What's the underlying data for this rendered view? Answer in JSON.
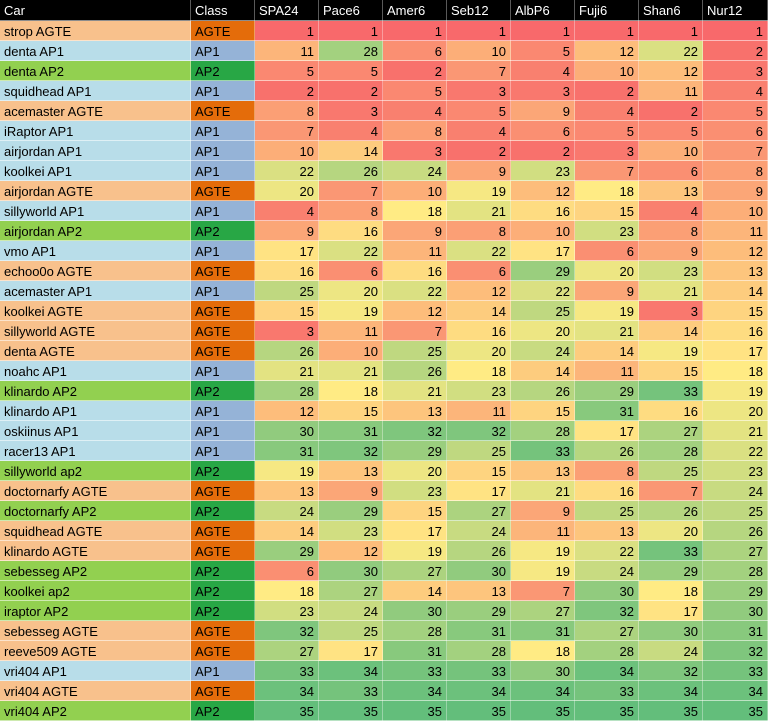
{
  "columns": [
    "Car",
    "Class",
    "SPA24",
    "Pace6",
    "Amer6",
    "Seb12",
    "AlbP6",
    "Fuji6",
    "Shan6",
    "Nur12"
  ],
  "class_colors": {
    "AGTE": {
      "car_bg": "#f8c18c",
      "class_bg": "#e46c0a"
    },
    "AP1": {
      "car_bg": "#b8dde9",
      "class_bg": "#95b3d7"
    },
    "AP2": {
      "car_bg": "#92d050",
      "class_bg": "#28a745"
    }
  },
  "scale": {
    "min": 1,
    "max": 35,
    "low_color": "#f8696b",
    "mid_color": "#ffeb84",
    "high_color": "#63be7b"
  },
  "rows": [
    {
      "car": "strop AGTE",
      "class": "AGTE",
      "values": [
        1,
        1,
        1,
        1,
        1,
        1,
        1,
        1
      ]
    },
    {
      "car": "denta AP1",
      "class": "AP1",
      "values": [
        11,
        28,
        6,
        10,
        5,
        12,
        22,
        2
      ]
    },
    {
      "car": "denta AP2",
      "class": "AP2",
      "values": [
        5,
        5,
        2,
        7,
        4,
        10,
        12,
        3
      ]
    },
    {
      "car": "squidhead AP1",
      "class": "AP1",
      "values": [
        2,
        2,
        5,
        3,
        3,
        2,
        11,
        4
      ]
    },
    {
      "car": "acemaster AGTE",
      "class": "AGTE",
      "values": [
        8,
        3,
        4,
        5,
        9,
        4,
        2,
        5
      ]
    },
    {
      "car": "iRaptor AP1",
      "class": "AP1",
      "values": [
        7,
        4,
        8,
        4,
        6,
        5,
        5,
        6
      ]
    },
    {
      "car": "airjordan AP1",
      "class": "AP1",
      "values": [
        10,
        14,
        3,
        2,
        2,
        3,
        10,
        7
      ]
    },
    {
      "car": "koolkei AP1",
      "class": "AP1",
      "values": [
        22,
        26,
        24,
        9,
        23,
        7,
        6,
        8
      ]
    },
    {
      "car": "airjordan AGTE",
      "class": "AGTE",
      "values": [
        20,
        7,
        10,
        19,
        12,
        18,
        13,
        9
      ]
    },
    {
      "car": "sillyworld AP1",
      "class": "AP1",
      "values": [
        4,
        8,
        18,
        21,
        16,
        15,
        4,
        10
      ]
    },
    {
      "car": "airjordan AP2",
      "class": "AP2",
      "values": [
        9,
        16,
        9,
        8,
        10,
        23,
        8,
        11
      ]
    },
    {
      "car": "vmo AP1",
      "class": "AP1",
      "values": [
        17,
        22,
        11,
        22,
        17,
        6,
        9,
        12
      ]
    },
    {
      "car": "echoo0o AGTE",
      "class": "AGTE",
      "values": [
        16,
        6,
        16,
        6,
        29,
        20,
        23,
        13
      ]
    },
    {
      "car": "acemaster AP1",
      "class": "AP1",
      "values": [
        25,
        20,
        22,
        12,
        22,
        9,
        21,
        14
      ]
    },
    {
      "car": "koolkei AGTE",
      "class": "AGTE",
      "values": [
        15,
        19,
        12,
        14,
        25,
        19,
        3,
        15
      ]
    },
    {
      "car": "sillyworld AGTE",
      "class": "AGTE",
      "values": [
        3,
        11,
        7,
        16,
        20,
        21,
        14,
        16
      ]
    },
    {
      "car": "denta AGTE",
      "class": "AGTE",
      "values": [
        26,
        10,
        25,
        20,
        24,
        14,
        19,
        17
      ]
    },
    {
      "car": "noahc AP1",
      "class": "AP1",
      "values": [
        21,
        21,
        26,
        18,
        14,
        11,
        15,
        18
      ]
    },
    {
      "car": "klinardo AP2",
      "class": "AP2",
      "values": [
        28,
        18,
        21,
        23,
        26,
        29,
        33,
        19
      ]
    },
    {
      "car": "klinardo AP1",
      "class": "AP1",
      "values": [
        12,
        15,
        13,
        11,
        15,
        31,
        16,
        20
      ]
    },
    {
      "car": "oskiinus AP1",
      "class": "AP1",
      "values": [
        30,
        31,
        32,
        32,
        28,
        17,
        27,
        21
      ]
    },
    {
      "car": "racer13 AP1",
      "class": "AP1",
      "values": [
        31,
        32,
        29,
        25,
        33,
        26,
        28,
        22
      ]
    },
    {
      "car": "sillyworld ap2",
      "class": "AP2",
      "values": [
        19,
        13,
        20,
        15,
        13,
        8,
        25,
        23
      ]
    },
    {
      "car": "doctornarfy AGTE",
      "class": "AGTE",
      "values": [
        13,
        9,
        23,
        17,
        21,
        16,
        7,
        24
      ]
    },
    {
      "car": "doctornarfy AP2",
      "class": "AP2",
      "values": [
        24,
        29,
        15,
        27,
        9,
        25,
        26,
        25
      ]
    },
    {
      "car": "squidhead AGTE",
      "class": "AGTE",
      "values": [
        14,
        23,
        17,
        24,
        11,
        13,
        20,
        26
      ]
    },
    {
      "car": "klinardo AGTE",
      "class": "AGTE",
      "values": [
        29,
        12,
        19,
        26,
        19,
        22,
        33,
        27
      ]
    },
    {
      "car": "sebesseg AP2",
      "class": "AP2",
      "values": [
        6,
        30,
        27,
        30,
        19,
        24,
        29,
        28
      ]
    },
    {
      "car": "koolkei ap2",
      "class": "AP2",
      "values": [
        18,
        27,
        14,
        13,
        7,
        30,
        18,
        29
      ]
    },
    {
      "car": "iraptor AP2",
      "class": "AP2",
      "values": [
        23,
        24,
        30,
        29,
        27,
        32,
        17,
        30
      ]
    },
    {
      "car": "sebesseg AGTE",
      "class": "AGTE",
      "values": [
        32,
        25,
        28,
        31,
        31,
        27,
        30,
        31
      ]
    },
    {
      "car": "reeve509 AGTE",
      "class": "AGTE",
      "values": [
        27,
        17,
        31,
        28,
        18,
        28,
        24,
        32
      ]
    },
    {
      "car": "vri404 AP1",
      "class": "AP1",
      "values": [
        33,
        34,
        33,
        33,
        30,
        34,
        32,
        33
      ]
    },
    {
      "car": "vri404 AGTE",
      "class": "AGTE",
      "values": [
        34,
        33,
        34,
        34,
        34,
        33,
        34,
        34
      ]
    },
    {
      "car": "vri404 AP2",
      "class": "AP2",
      "values": [
        35,
        35,
        35,
        35,
        35,
        35,
        35,
        35
      ]
    }
  ]
}
